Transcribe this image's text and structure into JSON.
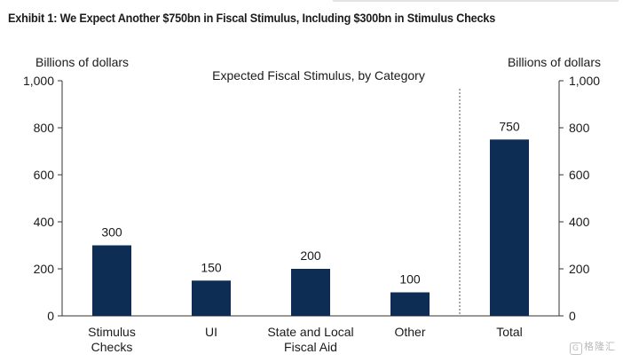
{
  "exhibit_title": "Exhibit 1: We Expect Another $750bn in Fiscal Stimulus, Including $300bn in Stimulus Checks",
  "chart_data": {
    "type": "bar",
    "title": "Expected Fiscal Stimulus, by Category",
    "ylabel_left": "Billions of dollars",
    "ylabel_right": "Billions of dollars",
    "ylim": [
      0,
      1000
    ],
    "yticks": [
      0,
      200,
      400,
      600,
      800,
      1000
    ],
    "ytick_labels": [
      "0",
      "200",
      "400",
      "600",
      "800",
      "1,000"
    ],
    "categories": [
      [
        "Stimulus",
        "Checks"
      ],
      [
        "UI"
      ],
      [
        "State and Local",
        "Fiscal Aid"
      ],
      [
        "Other"
      ],
      [
        "Total"
      ]
    ],
    "values": [
      300,
      150,
      200,
      100,
      750
    ],
    "data_labels": [
      "300",
      "150",
      "200",
      "100",
      "750"
    ],
    "bar_color": "#0d2d55",
    "separator_before_last": true,
    "grid": false
  },
  "watermark": {
    "icon": "G",
    "text": "格隆汇"
  }
}
